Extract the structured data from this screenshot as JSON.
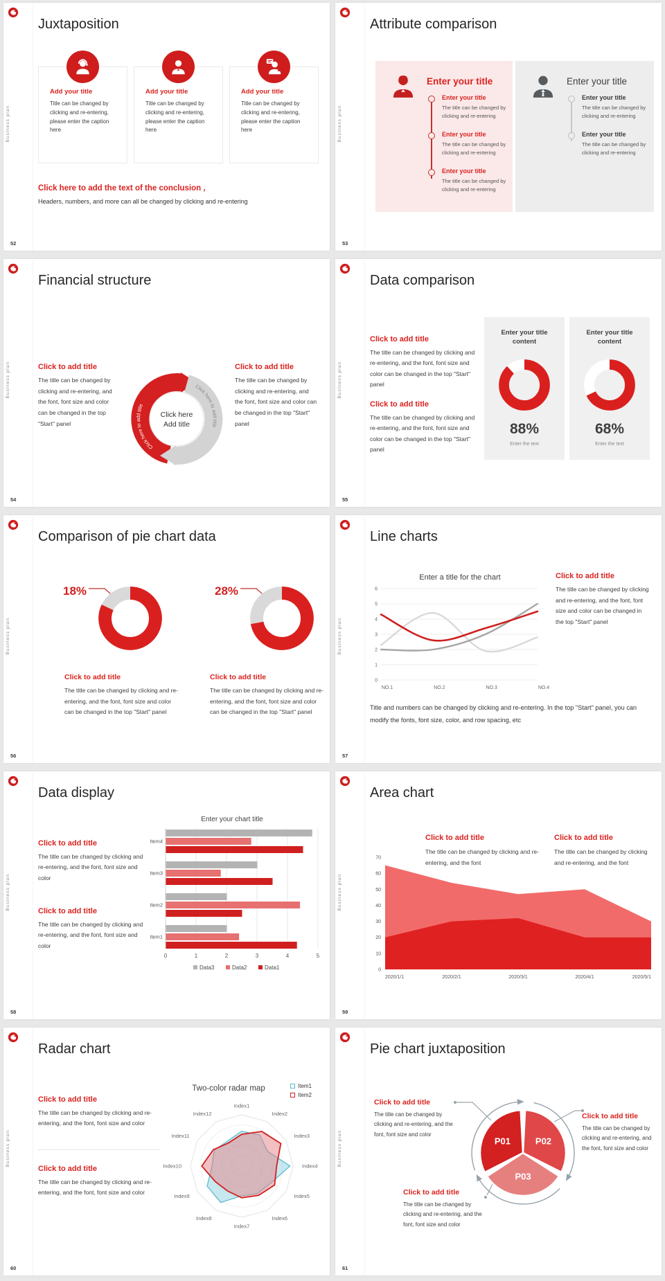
{
  "common": {
    "brand": "Business plan"
  },
  "theme": {
    "accent_red": "#d9231f",
    "panel_pink": "#fbe8e8",
    "panel_gray": "#ededed",
    "card_gray": "#f0f0f0"
  },
  "slides": {
    "s52": {
      "number": "52",
      "title": "Juxtaposition",
      "cards": [
        {
          "heading": "Add your title",
          "caption": "Title can be changed by clicking and re-entering, please enter the caption here"
        },
        {
          "heading": "Add your title",
          "caption": "Title can be changed by clicking and re-entering, please enter the caption here"
        },
        {
          "heading": "Add your title",
          "caption": "Title can be changed by clicking and re-entering, please enter the caption here"
        }
      ],
      "conclusion": {
        "heading": "Click here to add the text of the conclusion ,",
        "body": "Headers, numbers, and more can all be changed by clicking and re-entering"
      }
    },
    "s53": {
      "number": "53",
      "title": "Attribute comparison",
      "left": {
        "heading": "Enter your title",
        "items": [
          {
            "heading": "Enter your title",
            "body": "The title can be changed by clicking and re-entering"
          },
          {
            "heading": "Enter your title",
            "body": "The title can be changed by clicking and re-entering"
          },
          {
            "heading": "Enter your title",
            "body": "The title can be changed by clicking and re-entering"
          }
        ]
      },
      "right": {
        "heading": "Enter your title",
        "items": [
          {
            "heading": "Enter your title",
            "body": "The title can be changed by clicking and re-entering"
          },
          {
            "heading": "Enter your title",
            "body": "The title can be changed by clicking and re-entering"
          }
        ]
      }
    },
    "s54": {
      "number": "54",
      "title": "Financial structure",
      "left": {
        "heading": "Click to add title",
        "body": "The title can be changed by clicking and re-entering, and the font, font size and color can be changed in the top \"Start\" panel"
      },
      "right": {
        "heading": "Click to add title",
        "body": "The title can be changed by clicking and re-entering, and the font, font size and color can be changed in the top \"Start\" panel"
      },
      "center": {
        "line1": "Click here",
        "line2": "Add title",
        "arc_left": "Click here to add title",
        "arc_right": "Click here to add title"
      }
    },
    "s55": {
      "number": "55",
      "title": "Data comparison",
      "blocks": [
        {
          "heading": "Click to add title",
          "body": "The title can be changed by clicking and re-entering, and the font, font size and color can be changed in the top \"Start\" panel"
        },
        {
          "heading": "Click to add title",
          "body": "The title can be changed by clicking and re-entering, and the font, font size and color can be changed in the top \"Start\" panel"
        }
      ]
    },
    "s56": {
      "number": "56",
      "title": "Comparison of pie chart data",
      "blocks": [
        {
          "heading": "Click to add title",
          "body": "The title can be changed by clicking and re-entering, and the font, font size and color can be changed in the top \"Start\" panel"
        },
        {
          "heading": "Click to add title",
          "body": "The title can be changed by clicking and re-entering, and the font, font size and color can be changed in the top \"Start\" panel"
        }
      ]
    },
    "s57": {
      "number": "57",
      "title": "Line charts",
      "side": {
        "heading": "Click to add title",
        "body": "The title can be changed by clicking and re-entering, and the font, font size and color can be changed in the top \"Start\" panel"
      },
      "note": "Title and numbers can be changed by clicking and re-entering. In the top \"Start\" panel, you can modify the fonts, font size, color, and row spacing, etc"
    },
    "s58": {
      "number": "58",
      "title": "Data display",
      "blocks": [
        {
          "heading": "Click to add title",
          "body": "The title can be changed by clicking and re-entering, and the font, font size and color"
        },
        {
          "heading": "Click to add title",
          "body": "The title can be changed by clicking and re-entering, and the font, font size and color"
        }
      ]
    },
    "s59": {
      "number": "59",
      "title": "Area chart",
      "blocks": [
        {
          "heading": "Click to add title",
          "body": "The title can be changed by clicking and re-entering, and the font"
        },
        {
          "heading": "Click to add title",
          "body": "The title can be changed by clicking and re-entering, and the font"
        }
      ]
    },
    "s60": {
      "number": "60",
      "title": "Radar chart",
      "blocks": [
        {
          "heading": "Click to add title",
          "body": "The title can be changed by clicking and re-entering, and the font, font size and color"
        },
        {
          "heading": "Click to add title",
          "body": "The title can be changed by clicking and re-entering, and the font, font size and color"
        }
      ]
    },
    "s61": {
      "number": "61",
      "title": "Pie chart juxtaposition",
      "blocks": [
        {
          "heading": "Click to add title",
          "body": "The title can be changed by clicking and re-entering, and the font, font size and color"
        },
        {
          "heading": "Click to add title",
          "body": "The title can be changed by clicking and re-entering, and the font, font size and color"
        },
        {
          "heading": "Click to add title",
          "body": "The title can be changed by clicking and re-entering, and the font, font size and color"
        }
      ]
    }
  },
  "chart_data": {
    "data_comparison_donuts": {
      "type": "pie",
      "items": [
        {
          "title": "Enter your title content",
          "value": 88,
          "label": "88%",
          "caption": "Enter the text"
        },
        {
          "title": "Enter your title content",
          "value": 68,
          "label": "68%",
          "caption": "Enter the text"
        }
      ],
      "ring_color": "#da201f",
      "rest_color": "#ffffff"
    },
    "pie_share_donuts": {
      "type": "pie",
      "items": [
        {
          "label": "18%",
          "value": 18
        },
        {
          "label": "28%",
          "value": 28
        }
      ],
      "ring_color": "#da201f",
      "rest_color": "#d9d9d9"
    },
    "line_chart": {
      "type": "line",
      "title": "Enter a title for the chart",
      "categories": [
        "NO.1",
        "NO.2",
        "NO.3",
        "NO.4"
      ],
      "ylim": [
        0,
        6
      ],
      "yticks": [
        0,
        1,
        2,
        3,
        4,
        5,
        6
      ],
      "grid": true,
      "series": [
        {
          "name": "series-light-gray",
          "color": "#d9d9d9",
          "width": 2.4,
          "values": [
            2.3,
            4.4,
            1.9,
            2.8
          ]
        },
        {
          "name": "series-dark-gray",
          "color": "#a6a6a6",
          "width": 2.4,
          "values": [
            2.0,
            2.0,
            3.0,
            5.0
          ]
        },
        {
          "name": "series-red",
          "color": "#cf2020",
          "width": 2.6,
          "values": [
            4.3,
            2.6,
            3.4,
            4.5
          ]
        }
      ]
    },
    "bar_chart": {
      "type": "bar",
      "orientation": "horizontal",
      "title": "Enter your chart title",
      "categories": [
        "Item1",
        "Item2",
        "Item3",
        "Item4"
      ],
      "xlim": [
        0,
        5
      ],
      "xticks": [
        0,
        1,
        2,
        3,
        4,
        5
      ],
      "series": [
        {
          "name": "Data1",
          "color": "#d01f1f",
          "values": [
            4.3,
            2.5,
            3.5,
            4.5
          ]
        },
        {
          "name": "Data2",
          "color": "#e77070",
          "values": [
            2.4,
            4.4,
            1.8,
            2.8
          ]
        },
        {
          "name": "Data3",
          "color": "#b3b3b3",
          "values": [
            2.0,
            2.0,
            3.0,
            4.8
          ]
        }
      ],
      "legend_order": [
        "Data3",
        "Data2",
        "Data1"
      ],
      "legend_position": "bottom"
    },
    "area_chart": {
      "type": "area",
      "categories": [
        "2020/1/1",
        "2020/2/1",
        "2020/3/1",
        "2020/4/1",
        "2020/5/1"
      ],
      "ylim": [
        0,
        70
      ],
      "yticks": [
        0,
        10,
        20,
        30,
        40,
        50,
        60,
        70
      ],
      "series": [
        {
          "name": "upper-light-red",
          "color": "#f26b6b",
          "values": [
            65,
            54,
            47,
            50,
            30
          ]
        },
        {
          "name": "lower-dark-red",
          "color": "#e02121",
          "values": [
            20,
            30,
            32,
            20,
            20
          ]
        }
      ]
    },
    "radar_chart": {
      "type": "radar",
      "title": "Two-color radar map",
      "rmax": 5,
      "categories": [
        "Index1",
        "Index2",
        "Index3",
        "Index4",
        "Index5",
        "Index6",
        "Index7",
        "Index8",
        "Index9",
        "Index10",
        "Index11",
        "Index12"
      ],
      "series": [
        {
          "name": "Item1",
          "color": "#52b9cc",
          "fill": "rgba(130,205,220,0.45)",
          "values": [
            3.4,
            3.5,
            2.9,
            4.7,
            3.3,
            3.1,
            2.9,
            4.1,
            3.9,
            2.9,
            3.1,
            2.8
          ]
        },
        {
          "name": "Item2",
          "color": "#d02020",
          "fill": "rgba(230,130,135,0.5)",
          "values": [
            3.1,
            3.9,
            4.4,
            3.4,
            3.7,
            3.3,
            3.1,
            2.8,
            3.0,
            3.9,
            3.2,
            2.6
          ]
        }
      ],
      "legend_position": "top-right"
    },
    "pie_chart": {
      "type": "pie",
      "labels": [
        "P01",
        "P02",
        "P03"
      ],
      "values": [
        33.3,
        33.3,
        33.4
      ],
      "colors": [
        "#d32020",
        "#e04748",
        "#e6807f"
      ]
    }
  }
}
